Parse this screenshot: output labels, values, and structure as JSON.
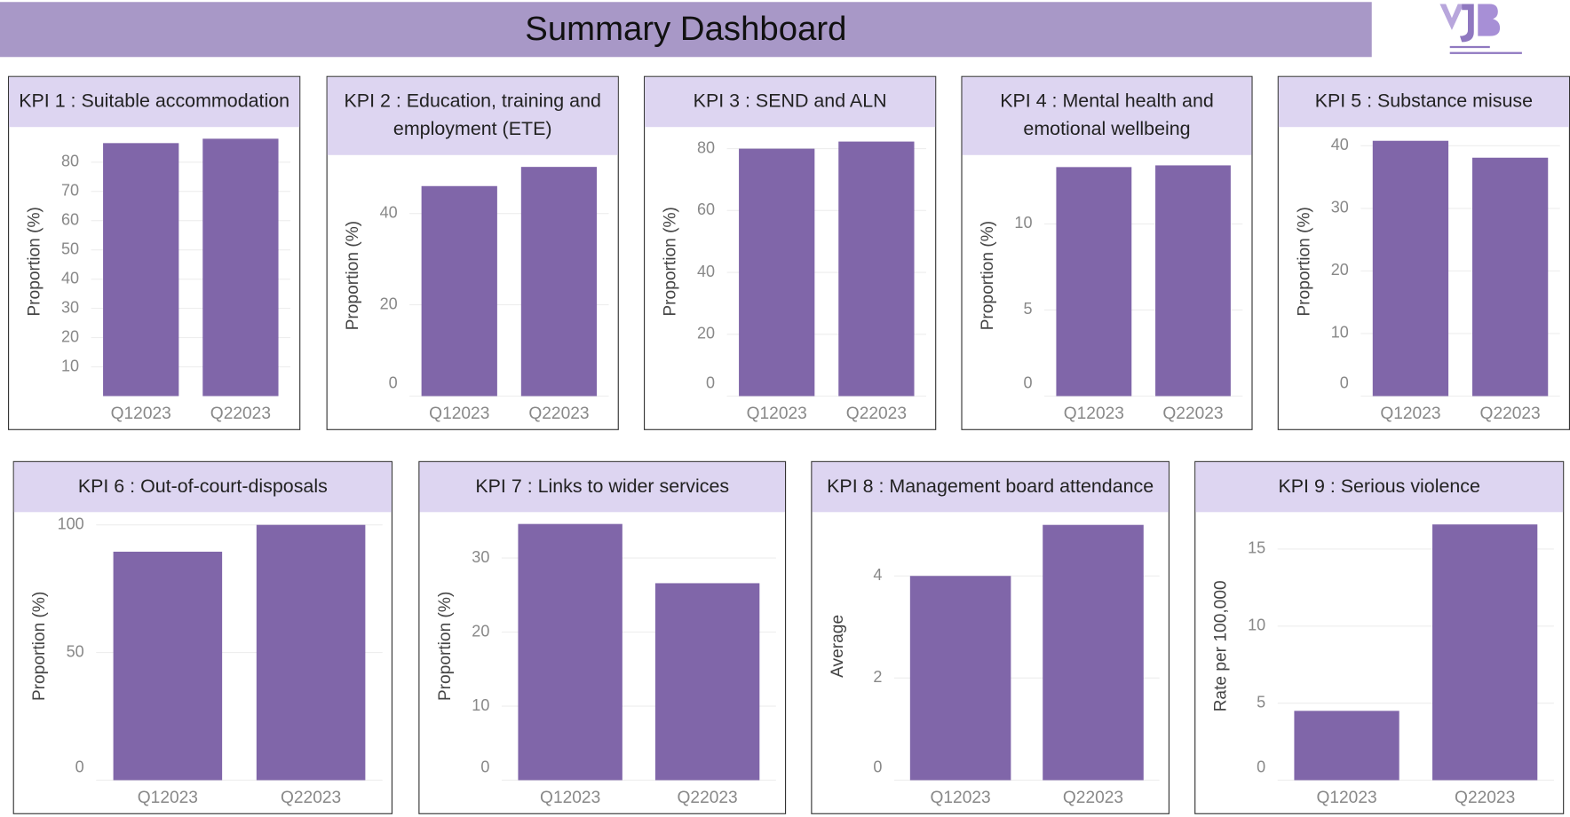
{
  "title": "Summary Dashboard",
  "chart_data": [
    {
      "type": "bar",
      "title": "KPI 1 : Suitable accommodation",
      "y_label": "Proportion (%)",
      "categories": [
        "Q12023",
        "Q22023"
      ],
      "values": [
        86.5,
        88
      ],
      "color": "#8066a9",
      "ylim": [
        0,
        92
      ],
      "yticks": [
        10,
        20,
        30,
        40,
        50,
        60,
        70,
        80
      ],
      "grid": true
    },
    {
      "type": "bar",
      "title": "KPI 2 : Education, training and employment (ETE)",
      "y_label": "Proportion (%)",
      "categories": [
        "Q12023",
        "Q22023"
      ],
      "values": [
        46,
        50.2
      ],
      "color": "#8066a9",
      "ylim": [
        0,
        52.8
      ],
      "yticks": [
        0,
        20,
        40
      ],
      "grid": true
    },
    {
      "type": "bar",
      "title": "KPI 3 : SEND and ALN",
      "y_label": "Proportion (%)",
      "categories": [
        "Q12023",
        "Q22023"
      ],
      "values": [
        80,
        82.3
      ],
      "color": "#8066a9",
      "ylim": [
        0,
        87
      ],
      "yticks": [
        0,
        20,
        40,
        60,
        80
      ],
      "grid": true
    },
    {
      "type": "bar",
      "title": "KPI 4 : Mental health and emotional wellbeing",
      "y_label": "Proportion (%)",
      "categories": [
        "Q12023",
        "Q22023"
      ],
      "values": [
        13.3,
        13.4
      ],
      "color": "#8066a9",
      "ylim": [
        0,
        14
      ],
      "yticks": [
        0,
        5,
        10
      ],
      "grid": true
    },
    {
      "type": "bar",
      "title": "KPI 5 : Substance misuse",
      "y_label": "Proportion (%)",
      "categories": [
        "Q12023",
        "Q22023"
      ],
      "values": [
        40.8,
        38.1
      ],
      "color": "#8066a9",
      "ylim": [
        0,
        43
      ],
      "yticks": [
        0,
        10,
        20,
        30,
        40
      ],
      "grid": true
    },
    {
      "type": "bar",
      "title": "KPI 6 : Out-of-court-disposals",
      "y_label": "Proportion (%)",
      "categories": [
        "Q12023",
        "Q22023"
      ],
      "values": [
        89.5,
        100
      ],
      "color": "#8066a9",
      "ylim": [
        0,
        105
      ],
      "yticks": [
        0,
        50,
        100
      ],
      "grid": true
    },
    {
      "type": "bar",
      "title": "KPI 7 : Links to wider services",
      "y_label": "Proportion (%)",
      "categories": [
        "Q12023",
        "Q22023"
      ],
      "values": [
        34.6,
        26.6
      ],
      "color": "#8066a9",
      "ylim": [
        0,
        36.2
      ],
      "yticks": [
        0,
        10,
        20,
        30
      ],
      "grid": true
    },
    {
      "type": "bar",
      "title": "KPI 8 : Management board attendance",
      "y_label": "Average",
      "categories": [
        "Q12023",
        "Q22023"
      ],
      "values": [
        4,
        5
      ],
      "color": "#8066a9",
      "ylim": [
        0,
        5.25
      ],
      "yticks": [
        0,
        2,
        4
      ],
      "grid": true
    },
    {
      "type": "bar",
      "title": "KPI 9 : Serious violence",
      "y_label": "Rate per 100,000",
      "categories": [
        "Q12023",
        "Q22023"
      ],
      "values": [
        4.5,
        16.6
      ],
      "color": "#8066a9",
      "ylim": [
        0,
        17.4
      ],
      "yticks": [
        0,
        5,
        10,
        15
      ],
      "grid": true
    }
  ]
}
